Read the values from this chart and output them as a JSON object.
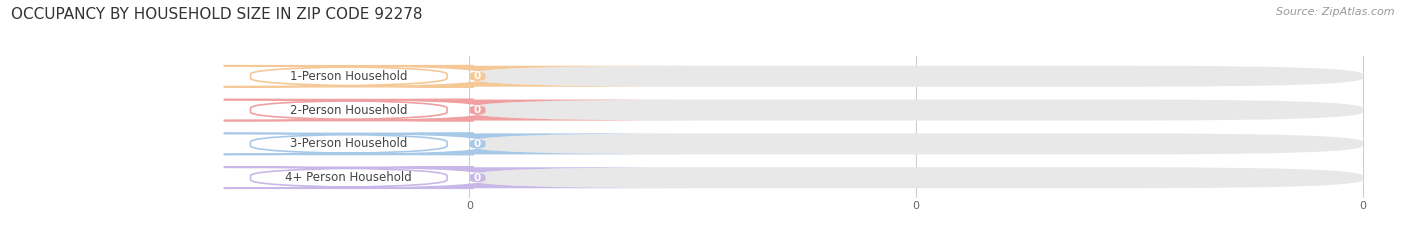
{
  "title": "OCCUPANCY BY HOUSEHOLD SIZE IN ZIP CODE 92278",
  "source_text": "Source: ZipAtlas.com",
  "categories": [
    "1-Person Household",
    "2-Person Household",
    "3-Person Household",
    "4+ Person Household"
  ],
  "values": [
    0,
    0,
    0,
    0
  ],
  "bar_colors": [
    "#f5c898",
    "#f0a0a0",
    "#a8c8e8",
    "#c8b8e8"
  ],
  "background_color": "#ffffff",
  "track_color": "#e8e8e8",
  "title_fontsize": 11,
  "label_fontsize": 8.5,
  "value_fontsize": 7.5,
  "source_fontsize": 8,
  "tick_fontsize": 8
}
